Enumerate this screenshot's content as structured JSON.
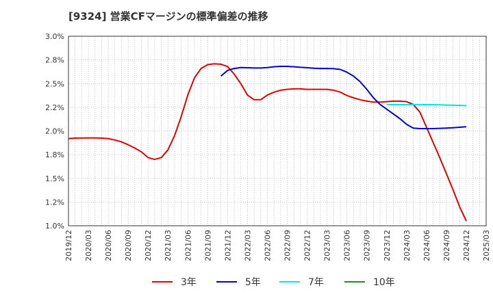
{
  "chart_data": {
    "type": "line",
    "title": "[9324]  営業CFマージンの標準偏差の推移",
    "xlabel": "",
    "ylabel": "",
    "ylim": [
      1.0,
      3.0
    ],
    "y_ticks": [
      "1.0%",
      "1.2%",
      "1.5%",
      "1.8%",
      "2.0%",
      "2.2%",
      "2.5%",
      "2.8%",
      "3.0%"
    ],
    "x_ticks": [
      "2019/12",
      "2020/03",
      "2020/06",
      "2020/09",
      "2020/12",
      "2021/03",
      "2021/06",
      "2021/09",
      "2021/12",
      "2022/03",
      "2022/06",
      "2022/09",
      "2022/12",
      "2023/03",
      "2023/06",
      "2023/09",
      "2023/12",
      "2024/03",
      "2024/06",
      "2024/09",
      "2024/12",
      "2025/03"
    ],
    "grid": true,
    "legend_position": "bottom",
    "series": [
      {
        "name": "3年",
        "color": "#e00000",
        "points": [
          [
            "2019/12",
            1.92
          ],
          [
            "2020/01",
            1.925
          ],
          [
            "2020/02",
            1.926
          ],
          [
            "2020/03",
            1.927
          ],
          [
            "2020/04",
            1.927
          ],
          [
            "2020/05",
            1.925
          ],
          [
            "2020/06",
            1.92
          ],
          [
            "2020/07",
            1.905
          ],
          [
            "2020/08",
            1.885
          ],
          [
            "2020/09",
            1.855
          ],
          [
            "2020/10",
            1.82
          ],
          [
            "2020/11",
            1.78
          ],
          [
            "2020/12",
            1.72
          ],
          [
            "2021/01",
            1.7
          ],
          [
            "2021/02",
            1.72
          ],
          [
            "2021/03",
            1.8
          ],
          [
            "2021/04",
            1.95
          ],
          [
            "2021/05",
            2.15
          ],
          [
            "2021/06",
            2.38
          ],
          [
            "2021/07",
            2.56
          ],
          [
            "2021/08",
            2.66
          ],
          [
            "2021/09",
            2.7
          ],
          [
            "2021/10",
            2.71
          ],
          [
            "2021/11",
            2.705
          ],
          [
            "2021/12",
            2.68
          ],
          [
            "2022/01",
            2.6
          ],
          [
            "2022/02",
            2.5
          ],
          [
            "2022/03",
            2.38
          ],
          [
            "2022/04",
            2.33
          ],
          [
            "2022/05",
            2.33
          ],
          [
            "2022/06",
            2.38
          ],
          [
            "2022/07",
            2.41
          ],
          [
            "2022/08",
            2.43
          ],
          [
            "2022/09",
            2.44
          ],
          [
            "2022/10",
            2.445
          ],
          [
            "2022/11",
            2.445
          ],
          [
            "2022/12",
            2.44
          ],
          [
            "2023/01",
            2.44
          ],
          [
            "2023/02",
            2.44
          ],
          [
            "2023/03",
            2.44
          ],
          [
            "2023/04",
            2.43
          ],
          [
            "2023/05",
            2.41
          ],
          [
            "2023/06",
            2.375
          ],
          [
            "2023/07",
            2.35
          ],
          [
            "2023/08",
            2.33
          ],
          [
            "2023/09",
            2.315
          ],
          [
            "2023/10",
            2.305
          ],
          [
            "2023/11",
            2.305
          ],
          [
            "2023/12",
            2.31
          ],
          [
            "2024/01",
            2.315
          ],
          [
            "2024/02",
            2.315
          ],
          [
            "2024/03",
            2.31
          ],
          [
            "2024/04",
            2.28
          ],
          [
            "2024/05",
            2.2
          ],
          [
            "2024/06",
            2.04
          ],
          [
            "2024/07",
            1.88
          ],
          [
            "2024/08",
            1.72
          ],
          [
            "2024/09",
            1.55
          ],
          [
            "2024/10",
            1.38
          ],
          [
            "2024/11",
            1.2
          ],
          [
            "2024/12",
            1.05
          ]
        ]
      },
      {
        "name": "5年",
        "color": "#0000cc",
        "points": [
          [
            "2021/11",
            2.58
          ],
          [
            "2021/12",
            2.64
          ],
          [
            "2022/01",
            2.66
          ],
          [
            "2022/02",
            2.67
          ],
          [
            "2022/03",
            2.668
          ],
          [
            "2022/04",
            2.665
          ],
          [
            "2022/05",
            2.665
          ],
          [
            "2022/06",
            2.67
          ],
          [
            "2022/07",
            2.678
          ],
          [
            "2022/08",
            2.682
          ],
          [
            "2022/09",
            2.682
          ],
          [
            "2022/10",
            2.678
          ],
          [
            "2022/11",
            2.672
          ],
          [
            "2022/12",
            2.668
          ],
          [
            "2023/01",
            2.662
          ],
          [
            "2023/02",
            2.66
          ],
          [
            "2023/03",
            2.66
          ],
          [
            "2023/04",
            2.658
          ],
          [
            "2023/05",
            2.65
          ],
          [
            "2023/06",
            2.62
          ],
          [
            "2023/07",
            2.58
          ],
          [
            "2023/08",
            2.52
          ],
          [
            "2023/09",
            2.44
          ],
          [
            "2023/10",
            2.35
          ],
          [
            "2023/11",
            2.28
          ],
          [
            "2023/12",
            2.23
          ],
          [
            "2024/01",
            2.18
          ],
          [
            "2024/02",
            2.13
          ],
          [
            "2024/03",
            2.07
          ],
          [
            "2024/04",
            2.03
          ],
          [
            "2024/05",
            2.025
          ],
          [
            "2024/06",
            2.025
          ],
          [
            "2024/07",
            2.025
          ],
          [
            "2024/08",
            2.028
          ],
          [
            "2024/09",
            2.03
          ],
          [
            "2024/10",
            2.035
          ],
          [
            "2024/11",
            2.04
          ],
          [
            "2024/12",
            2.045
          ]
        ]
      },
      {
        "name": "7年",
        "color": "#00e5e5",
        "points": [
          [
            "2023/12",
            2.28
          ],
          [
            "2024/01",
            2.278
          ],
          [
            "2024/02",
            2.278
          ],
          [
            "2024/03",
            2.278
          ],
          [
            "2024/04",
            2.278
          ],
          [
            "2024/05",
            2.278
          ],
          [
            "2024/06",
            2.278
          ],
          [
            "2024/07",
            2.278
          ],
          [
            "2024/08",
            2.276
          ],
          [
            "2024/09",
            2.274
          ],
          [
            "2024/10",
            2.272
          ],
          [
            "2024/11",
            2.27
          ],
          [
            "2024/12",
            2.268
          ]
        ]
      },
      {
        "name": "10年",
        "color": "#228b22",
        "points": []
      }
    ]
  }
}
